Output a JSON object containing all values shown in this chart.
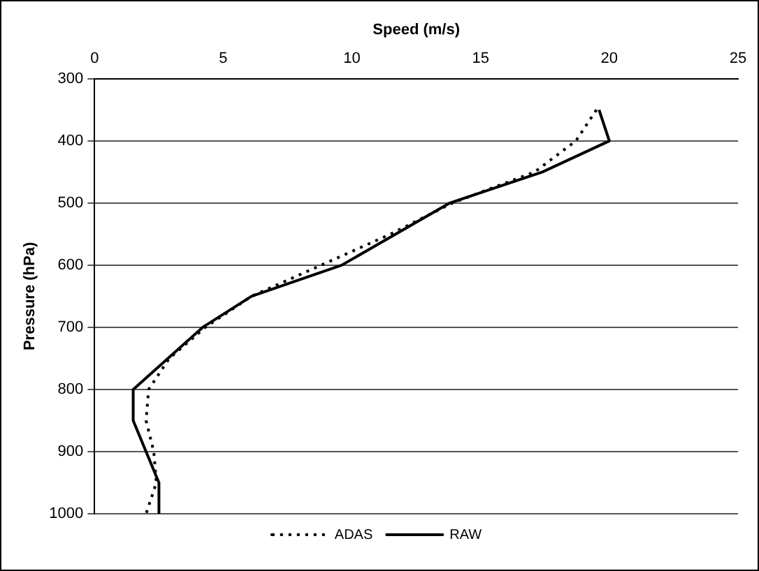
{
  "chart_data": {
    "type": "line",
    "xlabel": "Speed (m/s)",
    "ylabel": "Pressure (hPa)",
    "xlim": [
      0,
      25
    ],
    "xticks": [
      0,
      5,
      10,
      15,
      20,
      25
    ],
    "ylim": [
      1000,
      300
    ],
    "yticks": [
      300,
      400,
      500,
      600,
      700,
      800,
      900,
      1000
    ],
    "grid": "y",
    "legend": "bottom",
    "marker": "none",
    "series": [
      {
        "name": "ADAS",
        "color": "#000000",
        "line_style": "dotted",
        "x": [
          19.5,
          18.7,
          17.1,
          13.9,
          11.5,
          8.8,
          6.1,
          4.3,
          2.9,
          2.1,
          2.0,
          2.3,
          2.4,
          2.0
        ],
        "values": [
          350,
          400,
          450,
          500,
          550,
          600,
          650,
          700,
          750,
          800,
          850,
          900,
          950,
          1000
        ]
      },
      {
        "name": "RAW",
        "color": "#000000",
        "line_style": "solid",
        "x": [
          19.6,
          20.0,
          17.4,
          13.8,
          9.6,
          6.1,
          4.2,
          1.5,
          1.5,
          2.0,
          2.5,
          2.5
        ],
        "values": [
          350,
          400,
          450,
          500,
          600,
          650,
          700,
          800,
          850,
          900,
          950,
          1000
        ]
      }
    ]
  }
}
